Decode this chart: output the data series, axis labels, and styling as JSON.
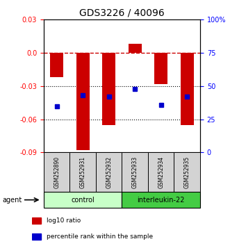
{
  "title": "GDS3226 / 40096",
  "samples": [
    "GSM252890",
    "GSM252931",
    "GSM252932",
    "GSM252933",
    "GSM252934",
    "GSM252935"
  ],
  "log10_ratio": [
    -0.022,
    -0.088,
    -0.065,
    0.008,
    -0.028,
    -0.065
  ],
  "percentile_rank": [
    35,
    43,
    42,
    48,
    36,
    42
  ],
  "ylim_left": [
    -0.09,
    0.03
  ],
  "ylim_right": [
    0,
    100
  ],
  "yticks_left": [
    -0.09,
    -0.06,
    -0.03,
    0.0,
    0.03
  ],
  "yticks_right": [
    0,
    25,
    50,
    75,
    100
  ],
  "bar_color": "#cc0000",
  "dot_color": "#0000cc",
  "zero_line_color": "#cc0000",
  "grid_color": "#000000",
  "legend_items": [
    {
      "label": "log10 ratio",
      "color": "#cc0000"
    },
    {
      "label": "percentile rank within the sample",
      "color": "#0000cc"
    }
  ],
  "groups_info": [
    {
      "name": "control",
      "start": 0,
      "end": 3,
      "color": "#c8ffc8"
    },
    {
      "name": "interleukin-22",
      "start": 3,
      "end": 6,
      "color": "#44cc44"
    }
  ]
}
